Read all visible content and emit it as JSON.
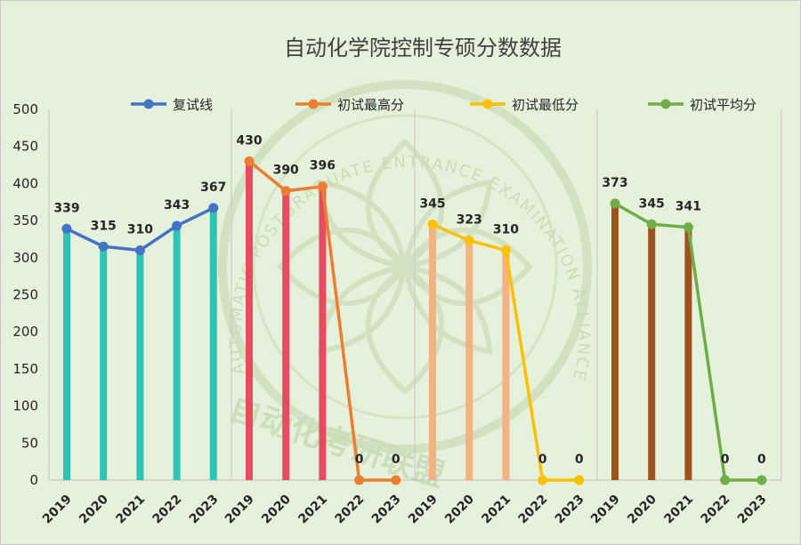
{
  "chart_data": {
    "type": "line",
    "title": "自动化学院控制专硕分数数据",
    "ylim": [
      0,
      500
    ],
    "yticks": [
      0,
      50,
      100,
      150,
      200,
      250,
      300,
      350,
      400,
      450,
      500
    ],
    "grid": false,
    "legend_position": "top",
    "groups": [
      {
        "name": "复试线",
        "color": "#4472c4",
        "bar_color": "#2ec4b6",
        "categories": [
          "2019",
          "2020",
          "2021",
          "2022",
          "2023"
        ],
        "values": [
          339,
          315,
          310,
          343,
          367
        ]
      },
      {
        "name": "初试最高分",
        "color": "#ed7d31",
        "bar_color": "#e84a5f",
        "categories": [
          "2019",
          "2020",
          "2021",
          "2022",
          "2023"
        ],
        "values": [
          430,
          390,
          396,
          0,
          0
        ]
      },
      {
        "name": "初试最低分",
        "color": "#ffc000",
        "bar_color": "#f4b183",
        "categories": [
          "2019",
          "2020",
          "2021",
          "2022",
          "2023"
        ],
        "values": [
          345,
          323,
          310,
          0,
          0
        ]
      },
      {
        "name": "初试平均分",
        "color": "#70ad47",
        "bar_color": "#a0521d",
        "categories": [
          "2019",
          "2020",
          "2021",
          "2022",
          "2023"
        ],
        "values": [
          373,
          345,
          341,
          0,
          0
        ]
      }
    ]
  },
  "watermark": {
    "ring_text": "AUTOMATIC POSTGRADUATE ENTRANCE EXAMINATION ALLIANCE",
    "name_text": "自动化考研联盟"
  }
}
